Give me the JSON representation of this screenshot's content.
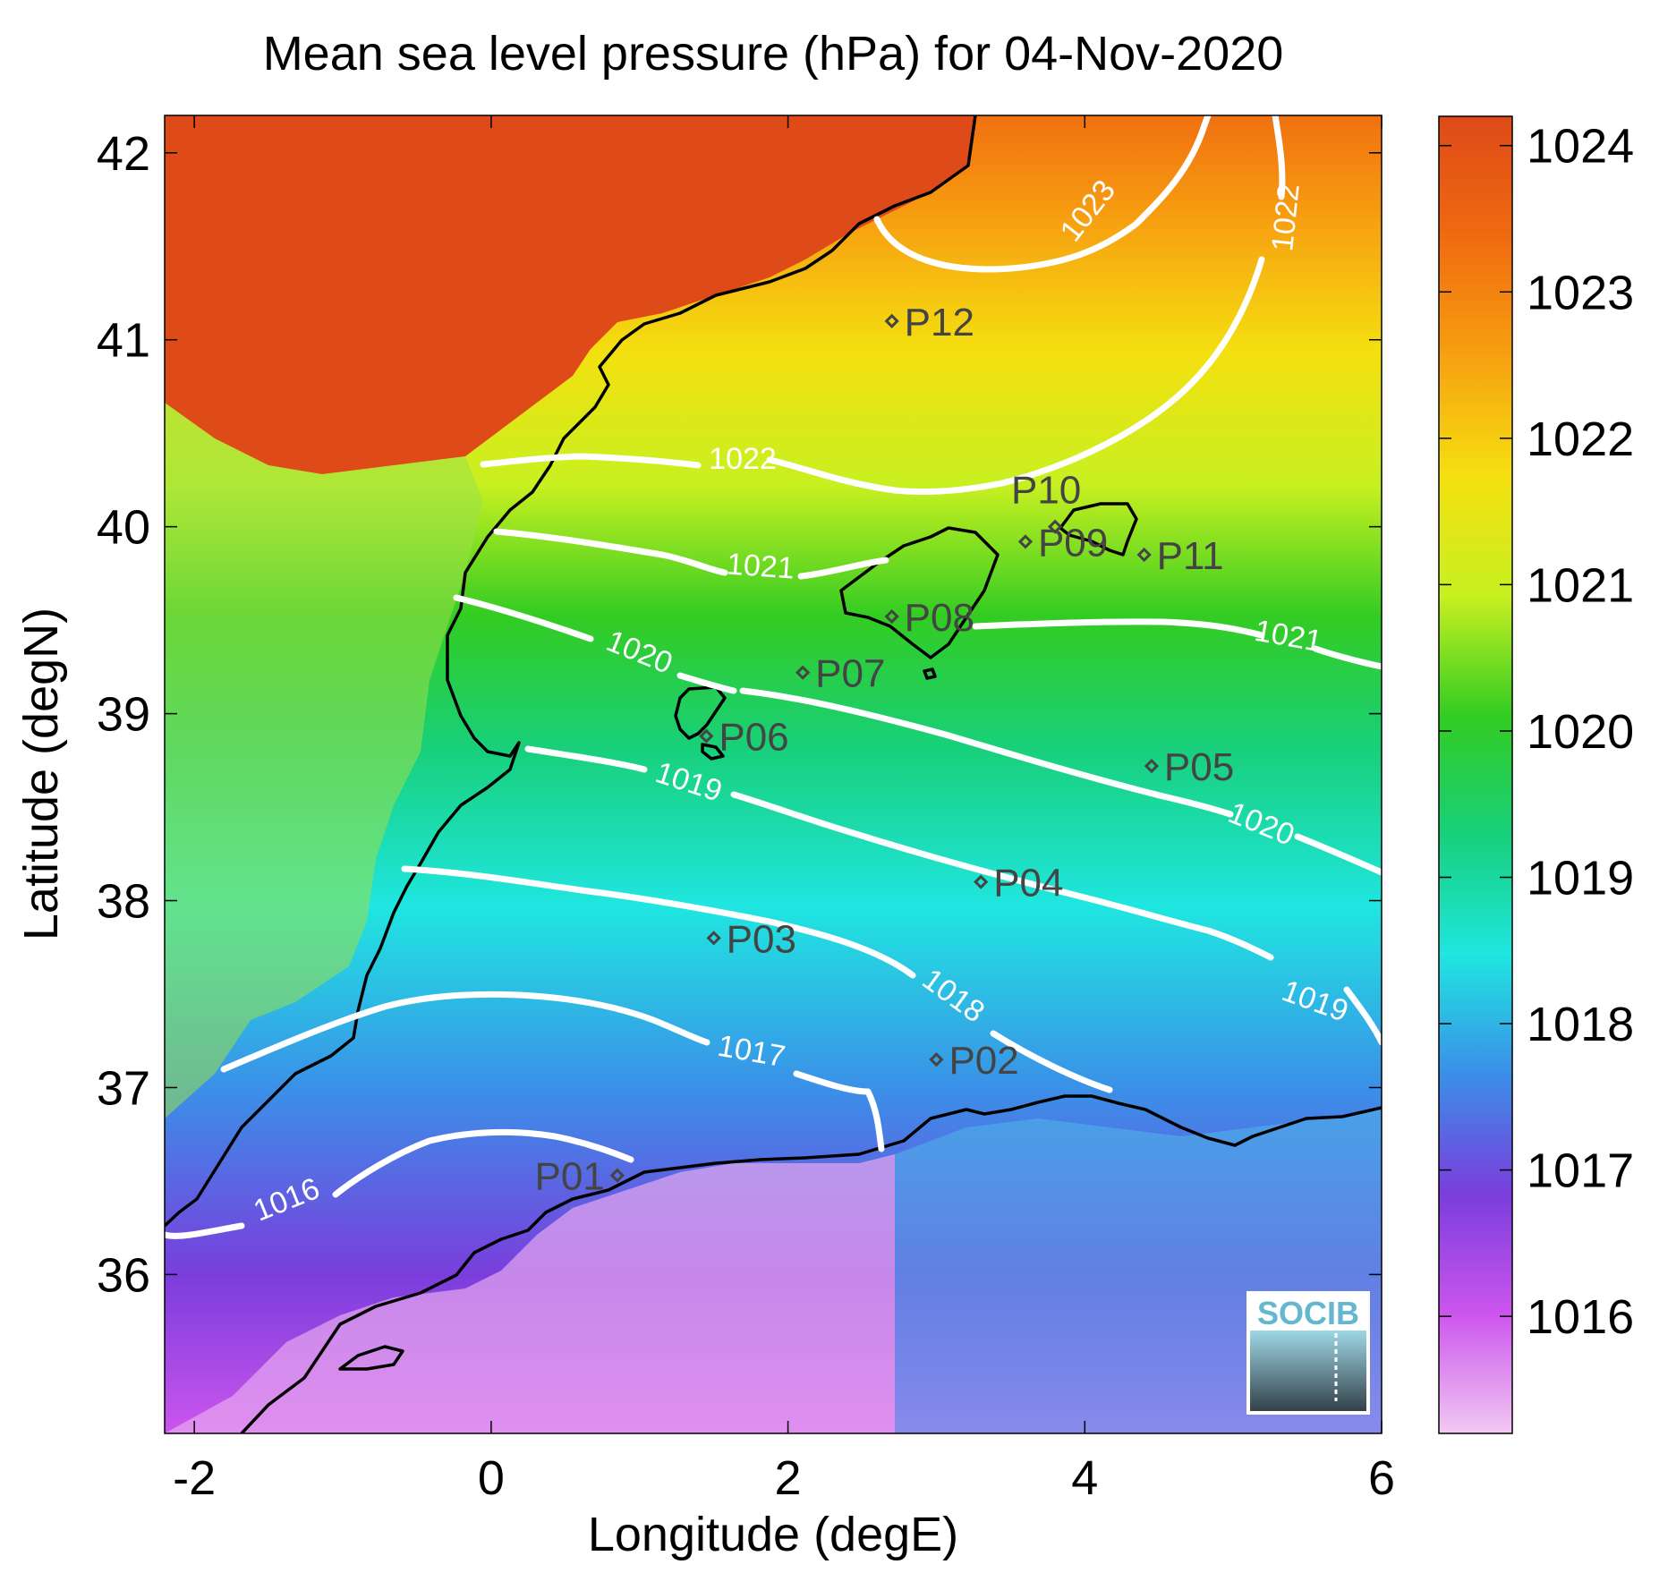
{
  "title": "Mean sea level pressure (hPa) for 04-Nov-2020",
  "xlabel": "Longitude (degE)",
  "ylabel": "Latitude (degN)",
  "x_ticks": [
    "-2",
    "0",
    "2",
    "4",
    "6"
  ],
  "y_ticks": [
    "42",
    "41",
    "40",
    "39",
    "38",
    "37",
    "36"
  ],
  "colorbar": {
    "ticks": [
      "1024",
      "1023",
      "1022",
      "1021",
      "1020",
      "1019",
      "1018",
      "1017",
      "1016"
    ],
    "range": [
      1015.2,
      1024.2
    ],
    "colors": [
      "#f2c8f2",
      "#cc55ee",
      "#7a3ddc",
      "#3b8fe8",
      "#1fe6e0",
      "#18d07a",
      "#33cc22",
      "#c8f020",
      "#f4e010",
      "#f7a010",
      "#f06a10",
      "#de4a18"
    ]
  },
  "contour_labels": [
    "1023",
    "1022",
    "1022",
    "1021",
    "1021",
    "1020",
    "1020",
    "1019",
    "1019",
    "1018",
    "1017",
    "1016"
  ],
  "stations": [
    {
      "id": "P01",
      "lon": 0.85,
      "lat": 36.53
    },
    {
      "id": "P02",
      "lon": 3.0,
      "lat": 37.15
    },
    {
      "id": "P03",
      "lon": 1.5,
      "lat": 37.8
    },
    {
      "id": "P04",
      "lon": 3.3,
      "lat": 38.1
    },
    {
      "id": "P05",
      "lon": 4.45,
      "lat": 38.72
    },
    {
      "id": "P06",
      "lon": 1.45,
      "lat": 38.88
    },
    {
      "id": "P07",
      "lon": 2.1,
      "lat": 39.22
    },
    {
      "id": "P08",
      "lon": 2.7,
      "lat": 39.52
    },
    {
      "id": "P09",
      "lon": 3.6,
      "lat": 39.92
    },
    {
      "id": "P10",
      "lon": 3.8,
      "lat": 40.0
    },
    {
      "id": "P11",
      "lon": 4.4,
      "lat": 39.85
    },
    {
      "id": "P12",
      "lon": 2.7,
      "lat": 41.1
    }
  ],
  "logo_text": "SOCIB"
}
